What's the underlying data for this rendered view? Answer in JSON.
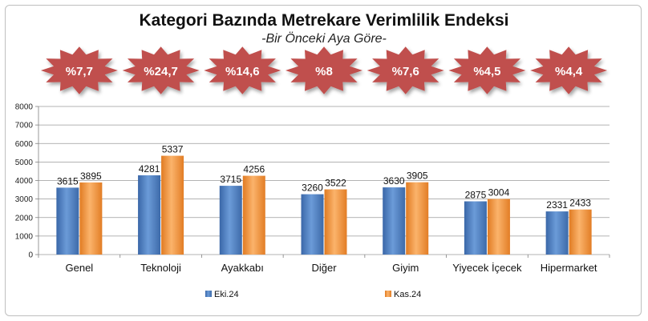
{
  "header": {
    "title": "Kategori Bazında Metrekare Verimlilik Endeksi",
    "subtitle": "-Bir Önceki Aya Göre-"
  },
  "badges": [
    "%7,7",
    "%24,7",
    "%14,6",
    "%8",
    "%7,6",
    "%4,5",
    "%4,4"
  ],
  "colors": {
    "series1": "#4f81bd",
    "series2": "#f79646",
    "badge": "#c0504d"
  },
  "chart_data": {
    "type": "bar",
    "title": "Kategori Bazında Metrekare Verimlilik Endeksi",
    "subtitle": "-Bir Önceki Aya Göre-",
    "categories": [
      "Genel",
      "Teknoloji",
      "Ayakkabı",
      "Diğer",
      "Giyim",
      "Yiyecek İçecek",
      "Hipermarket"
    ],
    "series": [
      {
        "name": "Eki.24",
        "values": [
          3615,
          4281,
          3715,
          3260,
          3630,
          2875,
          2331
        ]
      },
      {
        "name": "Kas.24",
        "values": [
          3895,
          5337,
          4256,
          3522,
          3905,
          3004,
          2433
        ]
      }
    ],
    "ylim": [
      0,
      8000
    ],
    "yticks": [
      0,
      1000,
      2000,
      3000,
      4000,
      5000,
      6000,
      7000,
      8000
    ],
    "grid": true,
    "legend": "bottom"
  }
}
